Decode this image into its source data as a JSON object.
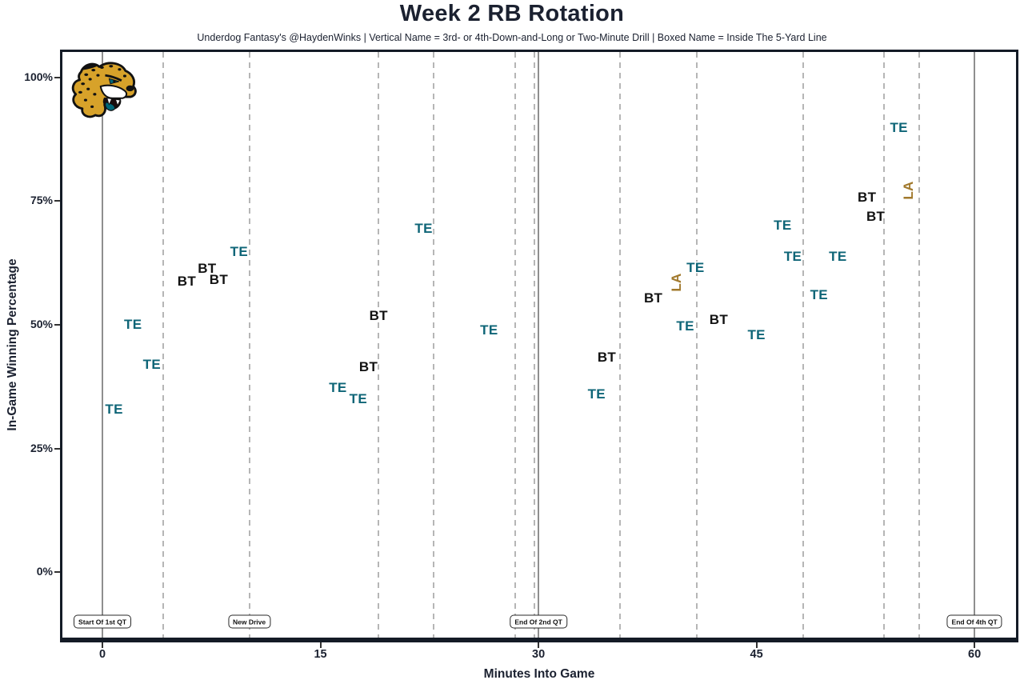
{
  "header": {
    "title": "Week 2 RB Rotation",
    "subtitle": "Underdog Fantasy's @HaydenWinks | Vertical Name = 3rd- or 4th-Down-and-Long or Two-Minute Drill | Boxed Name = Inside The 5-Yard Line"
  },
  "logo": {
    "team": "Jacksonville Jaguars",
    "icon": "jaguars-logo"
  },
  "chart_data": {
    "type": "scatter",
    "title": "Week 2 RB Rotation",
    "xlabel": "Minutes Into Game",
    "ylabel": "In-Game Winning Percentage",
    "x_range": [
      -2.92,
      63.02
    ],
    "y_range": [
      -13.75,
      105.66
    ],
    "grid": "vertical-only",
    "x_ticks": [
      {
        "v": 0,
        "label": "0"
      },
      {
        "v": 15,
        "label": "15"
      },
      {
        "v": 30,
        "label": "30"
      },
      {
        "v": 45,
        "label": "45"
      },
      {
        "v": 60,
        "label": "60"
      }
    ],
    "y_ticks": [
      {
        "v": 100,
        "label": "100%"
      },
      {
        "v": 75,
        "label": "75%"
      },
      {
        "v": 50,
        "label": "50%"
      },
      {
        "v": 25,
        "label": "25%"
      },
      {
        "v": 0,
        "label": "0%"
      }
    ],
    "vlines_solid_minutes": [
      0,
      30,
      60
    ],
    "vlines_dashed_minutes": [
      4.2,
      10.1,
      19.0,
      22.8,
      28.4,
      29.7,
      35.6,
      40.9,
      48.2,
      53.8,
      56.2
    ],
    "event_labels": [
      {
        "minutes": 0,
        "label": "Start Of 1st QT"
      },
      {
        "minutes": 10.1,
        "label": "New Drive"
      },
      {
        "minutes": 30,
        "label": "End Of 2nd QT"
      },
      {
        "minutes": 60,
        "label": "End Of 4th QT"
      }
    ],
    "points": [
      {
        "player": "TE",
        "minutes": 0.8,
        "win_pct": 32.8,
        "color": "teal",
        "vertical": false
      },
      {
        "player": "TE",
        "minutes": 2.1,
        "win_pct": 50.0,
        "color": "teal",
        "vertical": false
      },
      {
        "player": "TE",
        "minutes": 3.4,
        "win_pct": 41.9,
        "color": "teal",
        "vertical": false
      },
      {
        "player": "BT",
        "minutes": 5.8,
        "win_pct": 58.7,
        "color": "black",
        "vertical": false
      },
      {
        "player": "BT",
        "minutes": 7.2,
        "win_pct": 61.3,
        "color": "black",
        "vertical": false
      },
      {
        "player": "BT",
        "minutes": 8.0,
        "win_pct": 59.1,
        "color": "black",
        "vertical": false
      },
      {
        "player": "TE",
        "minutes": 9.4,
        "win_pct": 64.7,
        "color": "teal",
        "vertical": false
      },
      {
        "player": "TE",
        "minutes": 16.2,
        "win_pct": 37.2,
        "color": "teal",
        "vertical": false
      },
      {
        "player": "TE",
        "minutes": 17.6,
        "win_pct": 35.0,
        "color": "teal",
        "vertical": false
      },
      {
        "player": "BT",
        "minutes": 18.3,
        "win_pct": 41.4,
        "color": "black",
        "vertical": false
      },
      {
        "player": "BT",
        "minutes": 19.0,
        "win_pct": 51.8,
        "color": "black",
        "vertical": false
      },
      {
        "player": "TE",
        "minutes": 22.1,
        "win_pct": 69.4,
        "color": "teal",
        "vertical": false
      },
      {
        "player": "TE",
        "minutes": 26.6,
        "win_pct": 48.9,
        "color": "teal",
        "vertical": false
      },
      {
        "player": "TE",
        "minutes": 34.0,
        "win_pct": 35.9,
        "color": "teal",
        "vertical": false
      },
      {
        "player": "BT",
        "minutes": 34.7,
        "win_pct": 43.4,
        "color": "black",
        "vertical": false
      },
      {
        "player": "BT",
        "minutes": 37.9,
        "win_pct": 55.3,
        "color": "black",
        "vertical": false
      },
      {
        "player": "LA",
        "minutes": 39.5,
        "win_pct": 58.6,
        "color": "gold",
        "vertical": true
      },
      {
        "player": "TE",
        "minutes": 40.1,
        "win_pct": 49.7,
        "color": "teal",
        "vertical": false
      },
      {
        "player": "TE",
        "minutes": 40.8,
        "win_pct": 61.5,
        "color": "teal",
        "vertical": false
      },
      {
        "player": "BT",
        "minutes": 42.4,
        "win_pct": 51.0,
        "color": "black",
        "vertical": false
      },
      {
        "player": "TE",
        "minutes": 45.0,
        "win_pct": 47.9,
        "color": "teal",
        "vertical": false
      },
      {
        "player": "TE",
        "minutes": 46.8,
        "win_pct": 70.1,
        "color": "teal",
        "vertical": false
      },
      {
        "player": "TE",
        "minutes": 47.5,
        "win_pct": 63.8,
        "color": "teal",
        "vertical": false
      },
      {
        "player": "TE",
        "minutes": 49.3,
        "win_pct": 56.0,
        "color": "teal",
        "vertical": false
      },
      {
        "player": "TE",
        "minutes": 50.6,
        "win_pct": 63.8,
        "color": "teal",
        "vertical": false
      },
      {
        "player": "BT",
        "minutes": 52.6,
        "win_pct": 75.7,
        "color": "black",
        "vertical": false
      },
      {
        "player": "BT",
        "minutes": 53.2,
        "win_pct": 71.8,
        "color": "black",
        "vertical": false
      },
      {
        "player": "TE",
        "minutes": 54.8,
        "win_pct": 89.8,
        "color": "teal",
        "vertical": false
      },
      {
        "player": "LA",
        "minutes": 55.5,
        "win_pct": 77.2,
        "color": "gold",
        "vertical": true
      }
    ]
  },
  "colors": {
    "teal": "#0e6577",
    "black": "#121212",
    "gold": "#a1792c",
    "title_text": "#1b2130",
    "grid_solid": "#8f8f8f",
    "grid_dashed": "#b6b6b6",
    "axis_border": "#141b26",
    "logo_gold": "#d7a22a",
    "logo_teal": "#006778",
    "logo_black": "#121212"
  }
}
